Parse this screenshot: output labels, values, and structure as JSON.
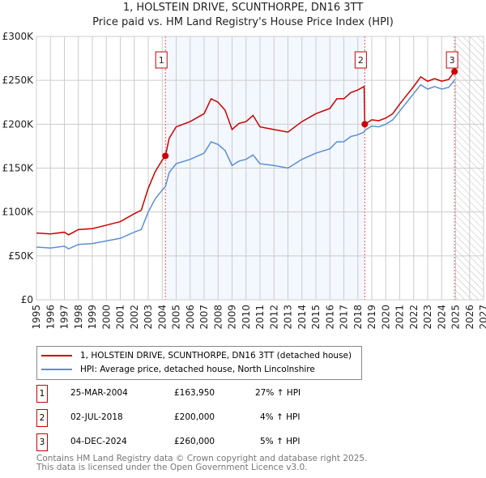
{
  "chart_data": {
    "type": "line",
    "title": "1, HOLSTEIN DRIVE, SCUNTHORPE, DN16 3TT",
    "subtitle": "Price paid vs. HM Land Registry's House Price Index (HPI)",
    "xlim": [
      1995,
      2027
    ],
    "ylim": [
      0,
      300000
    ],
    "yticks": [
      0,
      50000,
      100000,
      150000,
      200000,
      250000,
      300000
    ],
    "ytick_labels": [
      "£0",
      "£50K",
      "£100K",
      "£150K",
      "£200K",
      "£250K",
      "£300K"
    ],
    "xticks": [
      "1995",
      "1996",
      "1997",
      "1998",
      "1999",
      "2000",
      "2001",
      "2002",
      "2003",
      "2004",
      "2005",
      "2006",
      "2007",
      "2008",
      "2009",
      "2010",
      "2011",
      "2012",
      "2013",
      "2014",
      "2015",
      "2016",
      "2017",
      "2018",
      "2019",
      "2020",
      "2021",
      "2022",
      "2023",
      "2024",
      "2025",
      "2026",
      "2027"
    ],
    "grid": true,
    "shaded_range": [
      2004.23,
      2018.5
    ],
    "forecast_hatch_from": 2025,
    "x": [
      1995,
      1996,
      1997,
      1997.3,
      1998,
      1999,
      2000,
      2001,
      2002,
      2002.5,
      2003,
      2003.5,
      2004,
      2004.23,
      2004.5,
      2005,
      2006,
      2007,
      2007.5,
      2008,
      2008.5,
      2009,
      2009.5,
      2010,
      2010.5,
      2011,
      2012,
      2013,
      2013.5,
      2014,
      2015,
      2016,
      2016.5,
      2017,
      2017.5,
      2018,
      2018.45,
      2018.5,
      2019,
      2019.5,
      2020,
      2020.5,
      2021,
      2021.5,
      2022,
      2022.5,
      2023,
      2023.5,
      2024,
      2024.5,
      2024.92
    ],
    "series": [
      {
        "name": "1, HOLSTEIN DRIVE, SCUNTHORPE, DN16 3TT (detached house)",
        "color": "#cc0000",
        "values": [
          76,
          75,
          77,
          74,
          80,
          81,
          85,
          89,
          98,
          102,
          127,
          146,
          159,
          164,
          184,
          197,
          203,
          212,
          229,
          225,
          216,
          194,
          201,
          203,
          210,
          197,
          194,
          191,
          197,
          203,
          212,
          218,
          229,
          229,
          236,
          239,
          243,
          200,
          205,
          204,
          207,
          212,
          223,
          233,
          243,
          254,
          249,
          252,
          249,
          251,
          260
        ]
      },
      {
        "name": "HPI: Average price, detached house, North Lincolnshire",
        "color": "#5b8fd4",
        "values": [
          60,
          59,
          61,
          58,
          63,
          64,
          67,
          70,
          77,
          80,
          100,
          115,
          125,
          129,
          145,
          155,
          160,
          167,
          180,
          177,
          170,
          153,
          158,
          160,
          165,
          155,
          153,
          150,
          155,
          160,
          167,
          172,
          180,
          180,
          186,
          188,
          191,
          193,
          198,
          197,
          200,
          205,
          215,
          225,
          235,
          245,
          240,
          243,
          240,
          242,
          250
        ]
      }
    ],
    "value_unit": 1000,
    "sales": [
      {
        "label": "1",
        "x": 2004.23,
        "price": 163950,
        "date": "25-MAR-2004",
        "price_text": "£163,950",
        "hpi_text": "27% ↑ HPI"
      },
      {
        "label": "2",
        "x": 2018.5,
        "price": 200000,
        "date": "02-JUL-2018",
        "price_text": "£200,000",
        "hpi_text": "4% ↑ HPI"
      },
      {
        "label": "3",
        "x": 2024.92,
        "price": 260000,
        "date": "04-DEC-2024",
        "price_text": "£260,000",
        "hpi_text": "5% ↑ HPI"
      }
    ]
  },
  "footer": {
    "line1": "Contains HM Land Registry data © Crown copyright and database right 2025.",
    "line2": "This data is licensed under the Open Government Licence v3.0."
  }
}
